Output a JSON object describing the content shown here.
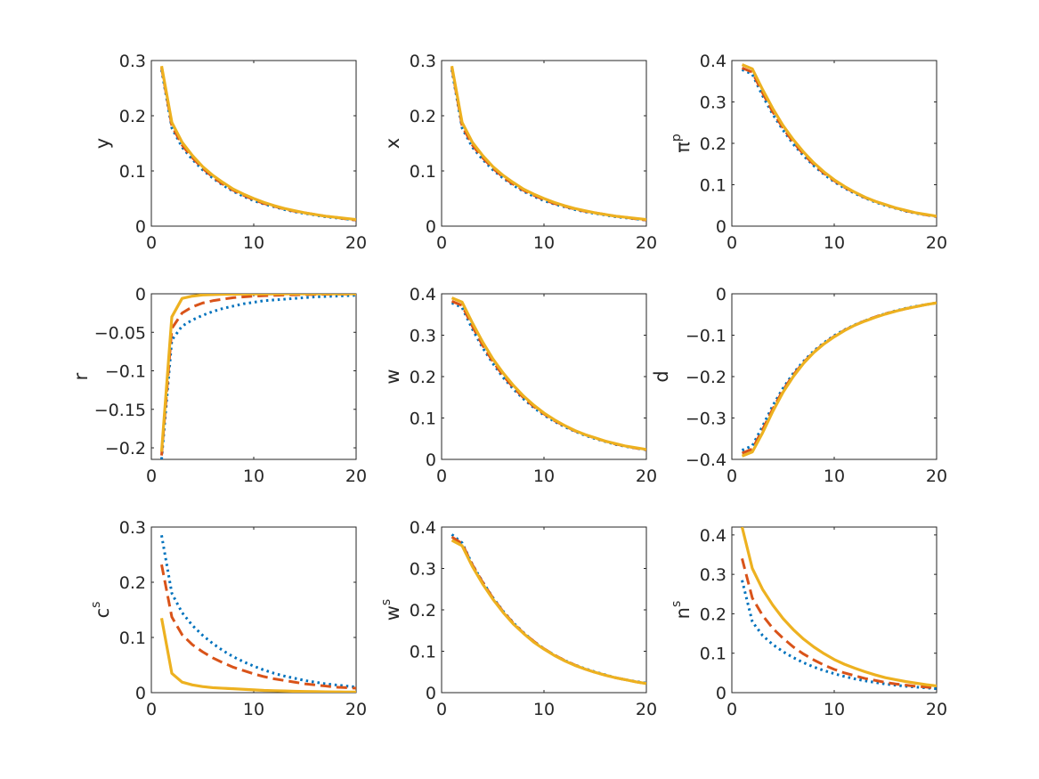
{
  "colors": {
    "series_1": "#0072BD",
    "series_2": "#D95319",
    "series_3": "#EDB120",
    "axes": "#262626"
  },
  "series_styles": [
    {
      "dash": "dotted",
      "color": "#0072BD"
    },
    {
      "dash": "dashed",
      "color": "#D95319"
    },
    {
      "dash": "solid",
      "color": "#EDB120"
    }
  ],
  "chart_data": [
    {
      "type": "line",
      "ylabel": "y",
      "ylabel_sup": "",
      "xlim": [
        0,
        20
      ],
      "ylim": [
        0,
        0.3
      ],
      "xticks": [
        0,
        10,
        20
      ],
      "xtick_labels": [
        "0",
        "10",
        "20"
      ],
      "yticks": [
        0,
        0.1,
        0.2,
        0.3
      ],
      "ytick_labels": [
        "0",
        "0.1",
        "0.2",
        "0.3"
      ],
      "x": [
        1,
        2,
        3,
        4,
        5,
        6,
        7,
        8,
        9,
        10,
        11,
        12,
        13,
        14,
        15,
        16,
        17,
        18,
        19,
        20
      ],
      "series": [
        {
          "values": [
            0.283,
            0.178,
            0.143,
            0.121,
            0.102,
            0.087,
            0.074,
            0.063,
            0.054,
            0.046,
            0.04,
            0.035,
            0.03,
            0.026,
            0.023,
            0.02,
            0.017,
            0.015,
            0.013,
            0.011
          ]
        },
        {
          "values": [
            0.287,
            0.182,
            0.147,
            0.124,
            0.105,
            0.089,
            0.076,
            0.065,
            0.056,
            0.048,
            0.041,
            0.036,
            0.031,
            0.027,
            0.024,
            0.021,
            0.018,
            0.016,
            0.013,
            0.011
          ]
        },
        {
          "values": [
            0.29,
            0.188,
            0.152,
            0.128,
            0.108,
            0.092,
            0.079,
            0.067,
            0.058,
            0.05,
            0.043,
            0.037,
            0.032,
            0.028,
            0.024,
            0.021,
            0.018,
            0.016,
            0.014,
            0.012
          ]
        }
      ]
    },
    {
      "type": "line",
      "ylabel": "x",
      "ylabel_sup": "",
      "xlim": [
        0,
        20
      ],
      "ylim": [
        0,
        0.3
      ],
      "xticks": [
        0,
        10,
        20
      ],
      "xtick_labels": [
        "0",
        "10",
        "20"
      ],
      "yticks": [
        0,
        0.1,
        0.2,
        0.3
      ],
      "ytick_labels": [
        "0",
        "0.1",
        "0.2",
        "0.3"
      ],
      "x": [
        1,
        2,
        3,
        4,
        5,
        6,
        7,
        8,
        9,
        10,
        11,
        12,
        13,
        14,
        15,
        16,
        17,
        18,
        19,
        20
      ],
      "series": [
        {
          "values": [
            0.283,
            0.178,
            0.143,
            0.121,
            0.102,
            0.087,
            0.074,
            0.063,
            0.054,
            0.046,
            0.04,
            0.035,
            0.03,
            0.026,
            0.023,
            0.02,
            0.017,
            0.015,
            0.013,
            0.011
          ]
        },
        {
          "values": [
            0.287,
            0.182,
            0.147,
            0.124,
            0.105,
            0.089,
            0.076,
            0.065,
            0.056,
            0.048,
            0.041,
            0.036,
            0.031,
            0.027,
            0.024,
            0.021,
            0.018,
            0.016,
            0.013,
            0.011
          ]
        },
        {
          "values": [
            0.29,
            0.188,
            0.152,
            0.128,
            0.108,
            0.092,
            0.079,
            0.067,
            0.058,
            0.05,
            0.043,
            0.037,
            0.032,
            0.028,
            0.024,
            0.021,
            0.018,
            0.016,
            0.014,
            0.012
          ]
        }
      ]
    },
    {
      "type": "line",
      "ylabel": "π",
      "ylabel_sup": "p",
      "xlim": [
        0,
        20
      ],
      "ylim": [
        0,
        0.4
      ],
      "xticks": [
        0,
        10,
        20
      ],
      "xtick_labels": [
        "0",
        "10",
        "20"
      ],
      "yticks": [
        0,
        0.1,
        0.2,
        0.3,
        0.4
      ],
      "ytick_labels": [
        "0",
        "0.1",
        "0.2",
        "0.3",
        "0.4"
      ],
      "x": [
        1,
        2,
        3,
        4,
        5,
        6,
        7,
        8,
        9,
        10,
        11,
        12,
        13,
        14,
        15,
        16,
        17,
        18,
        19,
        20
      ],
      "series": [
        {
          "values": [
            0.378,
            0.367,
            0.315,
            0.27,
            0.232,
            0.198,
            0.17,
            0.146,
            0.125,
            0.107,
            0.092,
            0.079,
            0.068,
            0.058,
            0.05,
            0.043,
            0.036,
            0.031,
            0.027,
            0.023
          ]
        },
        {
          "values": [
            0.382,
            0.372,
            0.322,
            0.276,
            0.237,
            0.203,
            0.174,
            0.149,
            0.128,
            0.11,
            0.094,
            0.081,
            0.069,
            0.06,
            0.051,
            0.044,
            0.037,
            0.032,
            0.027,
            0.023
          ]
        },
        {
          "values": [
            0.39,
            0.38,
            0.33,
            0.284,
            0.243,
            0.209,
            0.179,
            0.153,
            0.131,
            0.112,
            0.096,
            0.082,
            0.07,
            0.06,
            0.052,
            0.044,
            0.038,
            0.032,
            0.028,
            0.024
          ]
        }
      ]
    },
    {
      "type": "line",
      "ylabel": "r",
      "ylabel_sup": "",
      "xlim": [
        0,
        20
      ],
      "ylim": [
        -0.215,
        0
      ],
      "xticks": [
        0,
        10,
        20
      ],
      "xtick_labels": [
        "0",
        "10",
        "20"
      ],
      "yticks": [
        -0.2,
        -0.15,
        -0.1,
        -0.05,
        0
      ],
      "ytick_labels": [
        "−0.2",
        "−0.15",
        "−0.1",
        "−0.05",
        "0"
      ],
      "x": [
        1,
        2,
        3,
        4,
        5,
        6,
        7,
        8,
        9,
        10,
        11,
        12,
        13,
        14,
        15,
        16,
        17,
        18,
        19,
        20
      ],
      "series": [
        {
          "values": [
            -0.215,
            -0.06,
            -0.042,
            -0.034,
            -0.028,
            -0.023,
            -0.019,
            -0.016,
            -0.013,
            -0.011,
            -0.009,
            -0.008,
            -0.007,
            -0.006,
            -0.005,
            -0.004,
            -0.0035,
            -0.003,
            -0.0025,
            -0.002
          ]
        },
        {
          "values": [
            -0.21,
            -0.045,
            -0.025,
            -0.017,
            -0.012,
            -0.009,
            -0.007,
            -0.005,
            -0.004,
            -0.003,
            -0.0025,
            -0.002,
            -0.0016,
            -0.0013,
            -0.001,
            -0.0008,
            -0.0006,
            -0.0005,
            -0.0004,
            -0.0003
          ]
        },
        {
          "values": [
            -0.205,
            -0.03,
            -0.006,
            -0.003,
            -0.0015,
            -0.001,
            -0.0006,
            -0.0004,
            -0.0003,
            -0.0002,
            -0.0001,
            -0.0001,
            0,
            0,
            0,
            0,
            0,
            0,
            0,
            0
          ]
        }
      ]
    },
    {
      "type": "line",
      "ylabel": "w",
      "ylabel_sup": "",
      "xlim": [
        0,
        20
      ],
      "ylim": [
        0,
        0.4
      ],
      "xticks": [
        0,
        10,
        20
      ],
      "xtick_labels": [
        "0",
        "10",
        "20"
      ],
      "yticks": [
        0,
        0.1,
        0.2,
        0.3,
        0.4
      ],
      "ytick_labels": [
        "0",
        "0.1",
        "0.2",
        "0.3",
        "0.4"
      ],
      "x": [
        1,
        2,
        3,
        4,
        5,
        6,
        7,
        8,
        9,
        10,
        11,
        12,
        13,
        14,
        15,
        16,
        17,
        18,
        19,
        20
      ],
      "series": [
        {
          "values": [
            0.378,
            0.367,
            0.315,
            0.27,
            0.232,
            0.198,
            0.17,
            0.146,
            0.125,
            0.107,
            0.092,
            0.079,
            0.068,
            0.058,
            0.05,
            0.043,
            0.036,
            0.031,
            0.027,
            0.023
          ]
        },
        {
          "values": [
            0.382,
            0.372,
            0.322,
            0.276,
            0.237,
            0.203,
            0.174,
            0.149,
            0.128,
            0.11,
            0.094,
            0.081,
            0.069,
            0.06,
            0.051,
            0.044,
            0.037,
            0.032,
            0.027,
            0.023
          ]
        },
        {
          "values": [
            0.39,
            0.38,
            0.33,
            0.284,
            0.243,
            0.209,
            0.179,
            0.153,
            0.131,
            0.112,
            0.096,
            0.082,
            0.07,
            0.06,
            0.052,
            0.044,
            0.038,
            0.032,
            0.028,
            0.024
          ]
        }
      ]
    },
    {
      "type": "line",
      "ylabel": "d",
      "ylabel_sup": "",
      "xlim": [
        0,
        20
      ],
      "ylim": [
        -0.4,
        0
      ],
      "xticks": [
        0,
        10,
        20
      ],
      "xtick_labels": [
        "0",
        "10",
        "20"
      ],
      "yticks": [
        -0.4,
        -0.3,
        -0.2,
        -0.1,
        0
      ],
      "ytick_labels": [
        "−0.4",
        "−0.3",
        "−0.2",
        "−0.1",
        "0"
      ],
      "x": [
        1,
        2,
        3,
        4,
        5,
        6,
        7,
        8,
        9,
        10,
        11,
        12,
        13,
        14,
        15,
        16,
        17,
        18,
        19,
        20
      ],
      "series": [
        {
          "values": [
            -0.378,
            -0.367,
            -0.32,
            -0.27,
            -0.228,
            -0.192,
            -0.163,
            -0.138,
            -0.118,
            -0.101,
            -0.087,
            -0.075,
            -0.065,
            -0.056,
            -0.048,
            -0.041,
            -0.035,
            -0.03,
            -0.026,
            -0.022
          ]
        },
        {
          "values": [
            -0.385,
            -0.375,
            -0.328,
            -0.278,
            -0.233,
            -0.196,
            -0.166,
            -0.141,
            -0.12,
            -0.103,
            -0.088,
            -0.076,
            -0.065,
            -0.056,
            -0.048,
            -0.042,
            -0.036,
            -0.031,
            -0.026,
            -0.022
          ]
        },
        {
          "values": [
            -0.392,
            -0.382,
            -0.336,
            -0.284,
            -0.238,
            -0.2,
            -0.168,
            -0.142,
            -0.121,
            -0.104,
            -0.089,
            -0.076,
            -0.066,
            -0.057,
            -0.049,
            -0.042,
            -0.036,
            -0.031,
            -0.026,
            -0.022
          ]
        }
      ]
    },
    {
      "type": "line",
      "ylabel": "c",
      "ylabel_sup": "s",
      "xlim": [
        0,
        20
      ],
      "ylim": [
        0,
        0.3
      ],
      "xticks": [
        0,
        10,
        20
      ],
      "xtick_labels": [
        "0",
        "10",
        "20"
      ],
      "yticks": [
        0,
        0.1,
        0.2,
        0.3
      ],
      "ytick_labels": [
        "0",
        "0.1",
        "0.2",
        "0.3"
      ],
      "x": [
        1,
        2,
        3,
        4,
        5,
        6,
        7,
        8,
        9,
        10,
        11,
        12,
        13,
        14,
        15,
        16,
        17,
        18,
        19,
        20
      ],
      "series": [
        {
          "values": [
            0.285,
            0.18,
            0.145,
            0.122,
            0.104,
            0.089,
            0.076,
            0.065,
            0.056,
            0.048,
            0.041,
            0.035,
            0.03,
            0.026,
            0.022,
            0.019,
            0.016,
            0.014,
            0.012,
            0.01
          ]
        },
        {
          "values": [
            0.232,
            0.137,
            0.105,
            0.087,
            0.074,
            0.063,
            0.054,
            0.046,
            0.04,
            0.034,
            0.029,
            0.025,
            0.022,
            0.019,
            0.016,
            0.014,
            0.012,
            0.01,
            0.009,
            0.008
          ]
        },
        {
          "values": [
            0.135,
            0.035,
            0.019,
            0.014,
            0.011,
            0.009,
            0.008,
            0.007,
            0.006,
            0.005,
            0.004,
            0.0035,
            0.003,
            0.0025,
            0.002,
            0.0018,
            0.0015,
            0.0013,
            0.0011,
            0.001
          ]
        }
      ]
    },
    {
      "type": "line",
      "ylabel": "w",
      "ylabel_sup": "s",
      "xlim": [
        0,
        20
      ],
      "ylim": [
        0,
        0.4
      ],
      "xticks": [
        0,
        10,
        20
      ],
      "xtick_labels": [
        "0",
        "10",
        "20"
      ],
      "yticks": [
        0,
        0.1,
        0.2,
        0.3,
        0.4
      ],
      "ytick_labels": [
        "0",
        "0.1",
        "0.2",
        "0.3",
        "0.4"
      ],
      "x": [
        1,
        2,
        3,
        4,
        5,
        6,
        7,
        8,
        9,
        10,
        11,
        12,
        13,
        14,
        15,
        16,
        17,
        18,
        19,
        20
      ],
      "series": [
        {
          "values": [
            0.382,
            0.362,
            0.31,
            0.268,
            0.23,
            0.197,
            0.169,
            0.145,
            0.124,
            0.106,
            0.091,
            0.078,
            0.067,
            0.058,
            0.05,
            0.043,
            0.036,
            0.031,
            0.027,
            0.023
          ]
        },
        {
          "values": [
            0.376,
            0.36,
            0.309,
            0.267,
            0.229,
            0.196,
            0.168,
            0.144,
            0.124,
            0.106,
            0.091,
            0.078,
            0.067,
            0.057,
            0.049,
            0.042,
            0.036,
            0.031,
            0.026,
            0.022
          ]
        },
        {
          "values": [
            0.368,
            0.355,
            0.305,
            0.263,
            0.226,
            0.194,
            0.166,
            0.143,
            0.122,
            0.105,
            0.09,
            0.077,
            0.066,
            0.057,
            0.049,
            0.042,
            0.036,
            0.031,
            0.026,
            0.022
          ]
        }
      ]
    },
    {
      "type": "line",
      "ylabel": "n",
      "ylabel_sup": "s",
      "xlim": [
        0,
        20
      ],
      "ylim": [
        0,
        0.42
      ],
      "xticks": [
        0,
        10,
        20
      ],
      "xtick_labels": [
        "0",
        "10",
        "20"
      ],
      "yticks": [
        0,
        0.1,
        0.2,
        0.3,
        0.4
      ],
      "ytick_labels": [
        "0",
        "0.1",
        "0.2",
        "0.3",
        "0.4"
      ],
      "x": [
        1,
        2,
        3,
        4,
        5,
        6,
        7,
        8,
        9,
        10,
        11,
        12,
        13,
        14,
        15,
        16,
        17,
        18,
        19,
        20
      ],
      "series": [
        {
          "values": [
            0.285,
            0.18,
            0.145,
            0.122,
            0.104,
            0.089,
            0.076,
            0.065,
            0.056,
            0.048,
            0.041,
            0.035,
            0.03,
            0.026,
            0.022,
            0.019,
            0.016,
            0.014,
            0.012,
            0.01
          ]
        },
        {
          "values": [
            0.34,
            0.24,
            0.196,
            0.163,
            0.138,
            0.116,
            0.098,
            0.083,
            0.07,
            0.059,
            0.05,
            0.043,
            0.036,
            0.031,
            0.026,
            0.022,
            0.019,
            0.016,
            0.014,
            0.012
          ]
        },
        {
          "values": [
            0.42,
            0.315,
            0.262,
            0.222,
            0.188,
            0.16,
            0.136,
            0.116,
            0.099,
            0.084,
            0.072,
            0.062,
            0.053,
            0.045,
            0.038,
            0.033,
            0.028,
            0.024,
            0.02,
            0.017
          ]
        }
      ]
    }
  ]
}
